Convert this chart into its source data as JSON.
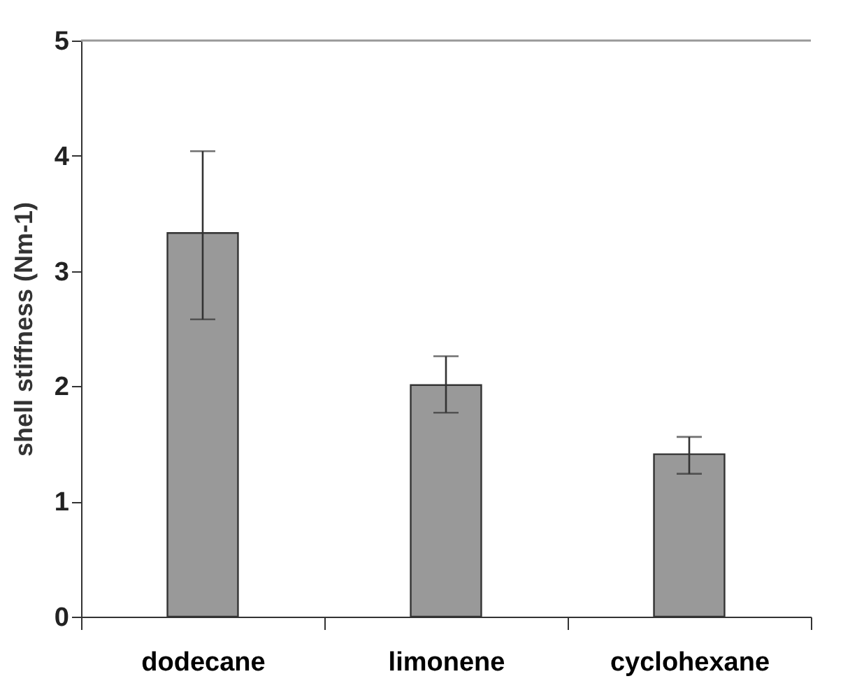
{
  "chart_data": {
    "type": "bar",
    "ylabel": "shell stiffness (Nm-1)",
    "categories": [
      "dodecane",
      "limonene",
      "cyclohexane"
    ],
    "values": [
      3.33,
      2.01,
      1.41
    ],
    "errors": [
      [
        2.58,
        4.04
      ],
      [
        1.77,
        2.26
      ],
      [
        1.24,
        1.56
      ]
    ],
    "color": "#999999",
    "ylim": [
      0,
      5
    ],
    "yticks": [
      0,
      1,
      2,
      3,
      4,
      5
    ],
    "grid": false
  }
}
